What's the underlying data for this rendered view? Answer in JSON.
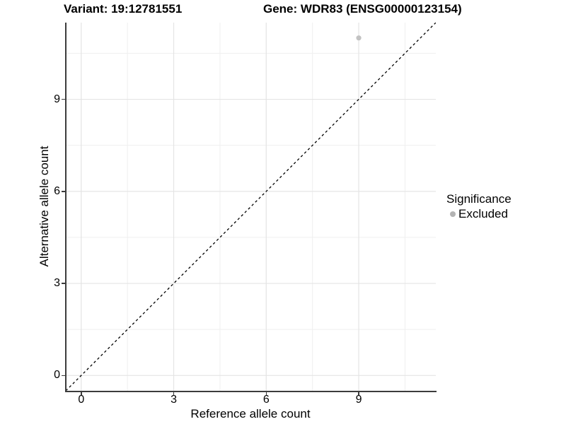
{
  "chart_data": {
    "type": "scatter",
    "title_left": "Variant: 19:12781551",
    "title_right": "Gene: WDR83 (ENSG00000123154)",
    "xlabel": "Reference allele count",
    "ylabel": "Alternative allele count",
    "xlim": [
      -0.5,
      11.5
    ],
    "ylim": [
      -0.5,
      11.5
    ],
    "x_ticks": [
      0,
      3,
      6,
      9
    ],
    "y_ticks": [
      0,
      3,
      6,
      9
    ],
    "minor_gridlines": [
      1.5,
      4.5,
      7.5,
      10.5
    ],
    "grid": true,
    "points": [
      {
        "x": 9,
        "y": 11,
        "series": "Excluded"
      }
    ],
    "reference_line": {
      "type": "identity",
      "style": "dashed",
      "from": [
        -0.5,
        -0.5
      ],
      "to": [
        11.5,
        11.5
      ]
    },
    "legend": {
      "title": "Significance",
      "position": "right",
      "entries": [
        {
          "label": "Excluded",
          "color": "#bdbdbd"
        }
      ]
    }
  },
  "colors": {
    "background": "#ffffff",
    "grid_major": "#e4e4e4",
    "grid_minor": "#efefef",
    "axis_line": "#3c3c3c",
    "dashed_line": "#000000",
    "point": "#c2c2c2",
    "legend_dot": "#b3b3b3",
    "text": "#000000"
  }
}
